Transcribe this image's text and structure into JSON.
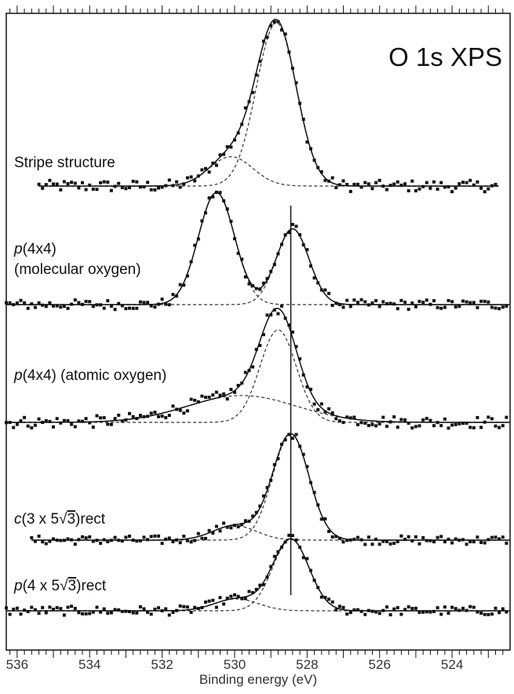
{
  "chart_data": {
    "type": "line",
    "title": "O 1s XPS",
    "xlabel": "Binding energy (eV)",
    "ylabel": "",
    "xlim": [
      536.3,
      522.4
    ],
    "x_reversed": true,
    "x_ticks": [
      536,
      534,
      532,
      530,
      528,
      526,
      524
    ],
    "x_tick_labels": [
      "536",
      "534",
      "532",
      "530",
      "528",
      "526",
      "524"
    ],
    "reference_line_x": 528.45,
    "grid": false,
    "legend": "none",
    "spectra": [
      {
        "label": "Stripe structure",
        "x_range": [
          535.4,
          522.7
        ],
        "baseline": 0,
        "peaks": [
          {
            "center": 528.85,
            "height": 1.0,
            "sigma": 0.55
          },
          {
            "center": 530.1,
            "height": 0.18,
            "sigma": 0.6
          }
        ],
        "noise": 0.035
      },
      {
        "label": "p(4x4) (molecular oxygen)",
        "x_range": [
          536.3,
          522.4
        ],
        "baseline": 0,
        "peaks": [
          {
            "center": 530.5,
            "height": 0.68,
            "sigma": 0.5
          },
          {
            "center": 528.4,
            "height": 0.46,
            "sigma": 0.45
          }
        ],
        "noise": 0.03
      },
      {
        "label": "p(4x4) (atomic oxygen)",
        "x_range": [
          536.3,
          522.4
        ],
        "baseline": 0,
        "peaks": [
          {
            "center": 528.8,
            "height": 0.62,
            "sigma": 0.5
          },
          {
            "center": 529.8,
            "height": 0.18,
            "sigma": 1.5
          }
        ],
        "noise": 0.04
      },
      {
        "label": "c(3 x 5√3)rect",
        "x_range": [
          535.6,
          522.4
        ],
        "baseline": 0,
        "peaks": [
          {
            "center": 528.45,
            "height": 0.73,
            "sigma": 0.5
          },
          {
            "center": 530.0,
            "height": 0.1,
            "sigma": 0.6
          }
        ],
        "noise": 0.03
      },
      {
        "label": "p(4 x 5√3)rect",
        "x_range": [
          536.3,
          522.4
        ],
        "baseline": 0,
        "peaks": [
          {
            "center": 528.45,
            "height": 0.48,
            "sigma": 0.5
          },
          {
            "center": 529.95,
            "height": 0.08,
            "sigma": 0.6
          }
        ],
        "noise": 0.03
      }
    ]
  },
  "labels": {
    "stripe": "Stripe structure",
    "mol_prefix": "p",
    "mol_rest": "(4x4)",
    "mol_line2": "(molecular oxygen)",
    "atomic_prefix": "p",
    "atomic_rest": "(4x4) (atomic oxygen)",
    "c3_prefix": "c",
    "c3_rest_a": "(3 x 5",
    "c3_root": "√",
    "c3_three": "3",
    "c3_rest_b": ")rect",
    "p4_prefix": "p",
    "p4_rest_a": "(4 x 5",
    "p4_root": "√",
    "p4_three": "3",
    "p4_rest_b": ")rect"
  },
  "colors": {
    "data": "#111111",
    "fit": "#111111",
    "component": "#333333",
    "frame": "#111111"
  }
}
